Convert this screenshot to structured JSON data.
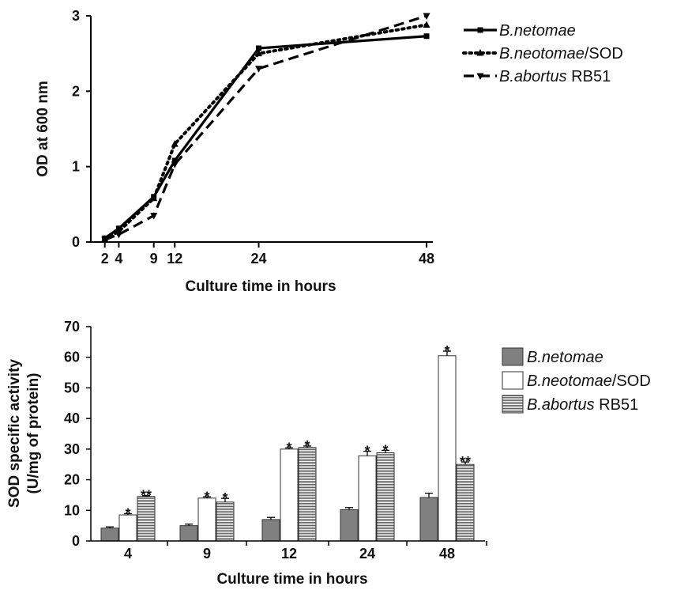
{
  "chart_data": [
    {
      "type": "line",
      "xlabel": "Culture time in hours",
      "ylabel": "OD at 600 nm",
      "x": [
        2,
        4,
        9,
        12,
        24,
        48
      ],
      "xticks": [
        "2",
        "4",
        "9",
        "12",
        "24",
        "48"
      ],
      "yticks": [
        "0",
        "1",
        "2",
        "3"
      ],
      "ylim": [
        0,
        3
      ],
      "series": [
        {
          "name_italic": "B.netomae",
          "name_rest": "",
          "style": "solid",
          "marker": "square",
          "values": [
            0.05,
            0.18,
            0.6,
            1.08,
            2.57,
            2.73
          ]
        },
        {
          "name_italic": "B.neotomae",
          "name_rest": "/SOD",
          "style": "dotted",
          "marker": "triangle-up",
          "values": [
            0.04,
            0.14,
            0.58,
            1.3,
            2.5,
            2.88
          ]
        },
        {
          "name_italic": "B.abortus",
          "name_rest": " RB51",
          "style": "dashed",
          "marker": "triangle-down",
          "values": [
            0.03,
            0.1,
            0.35,
            1.03,
            2.3,
            3.0
          ]
        }
      ],
      "legend": "right"
    },
    {
      "type": "bar",
      "xlabel": "Culture time in hours",
      "ylabel_line1": "SOD specific activity",
      "ylabel_line2": "(U/mg of protein)",
      "categories": [
        "4",
        "9",
        "12",
        "24",
        "48"
      ],
      "yticks": [
        "0",
        "10",
        "20",
        "30",
        "40",
        "50",
        "60",
        "70"
      ],
      "ylim": [
        0,
        70
      ],
      "series": [
        {
          "name_italic": "B.netomae",
          "name_rest": "",
          "fill": "gray",
          "values": [
            4.2,
            5.0,
            7.0,
            10.2,
            14.2
          ],
          "errors": [
            0.4,
            0.5,
            0.7,
            0.7,
            1.4
          ],
          "stars": [
            "",
            "",
            "",
            "",
            ""
          ]
        },
        {
          "name_italic": "B.neotomae",
          "name_rest": "/SOD",
          "fill": "white",
          "values": [
            8.5,
            14.0,
            30.0,
            27.8,
            60.5
          ],
          "errors": [
            0.4,
            0.4,
            0.4,
            1.5,
            1.5
          ],
          "stars": [
            "*",
            "*",
            "*",
            "*",
            "*"
          ]
        },
        {
          "name_italic": "B.abortus",
          "name_rest": " RB51",
          "fill": "striped",
          "values": [
            14.5,
            12.7,
            30.5,
            28.8,
            25.0
          ],
          "errors": [
            0.3,
            1.2,
            0.5,
            0.8,
            0.8
          ],
          "stars": [
            "**",
            "*",
            "*",
            "*",
            "**"
          ]
        }
      ],
      "legend": "right"
    }
  ]
}
